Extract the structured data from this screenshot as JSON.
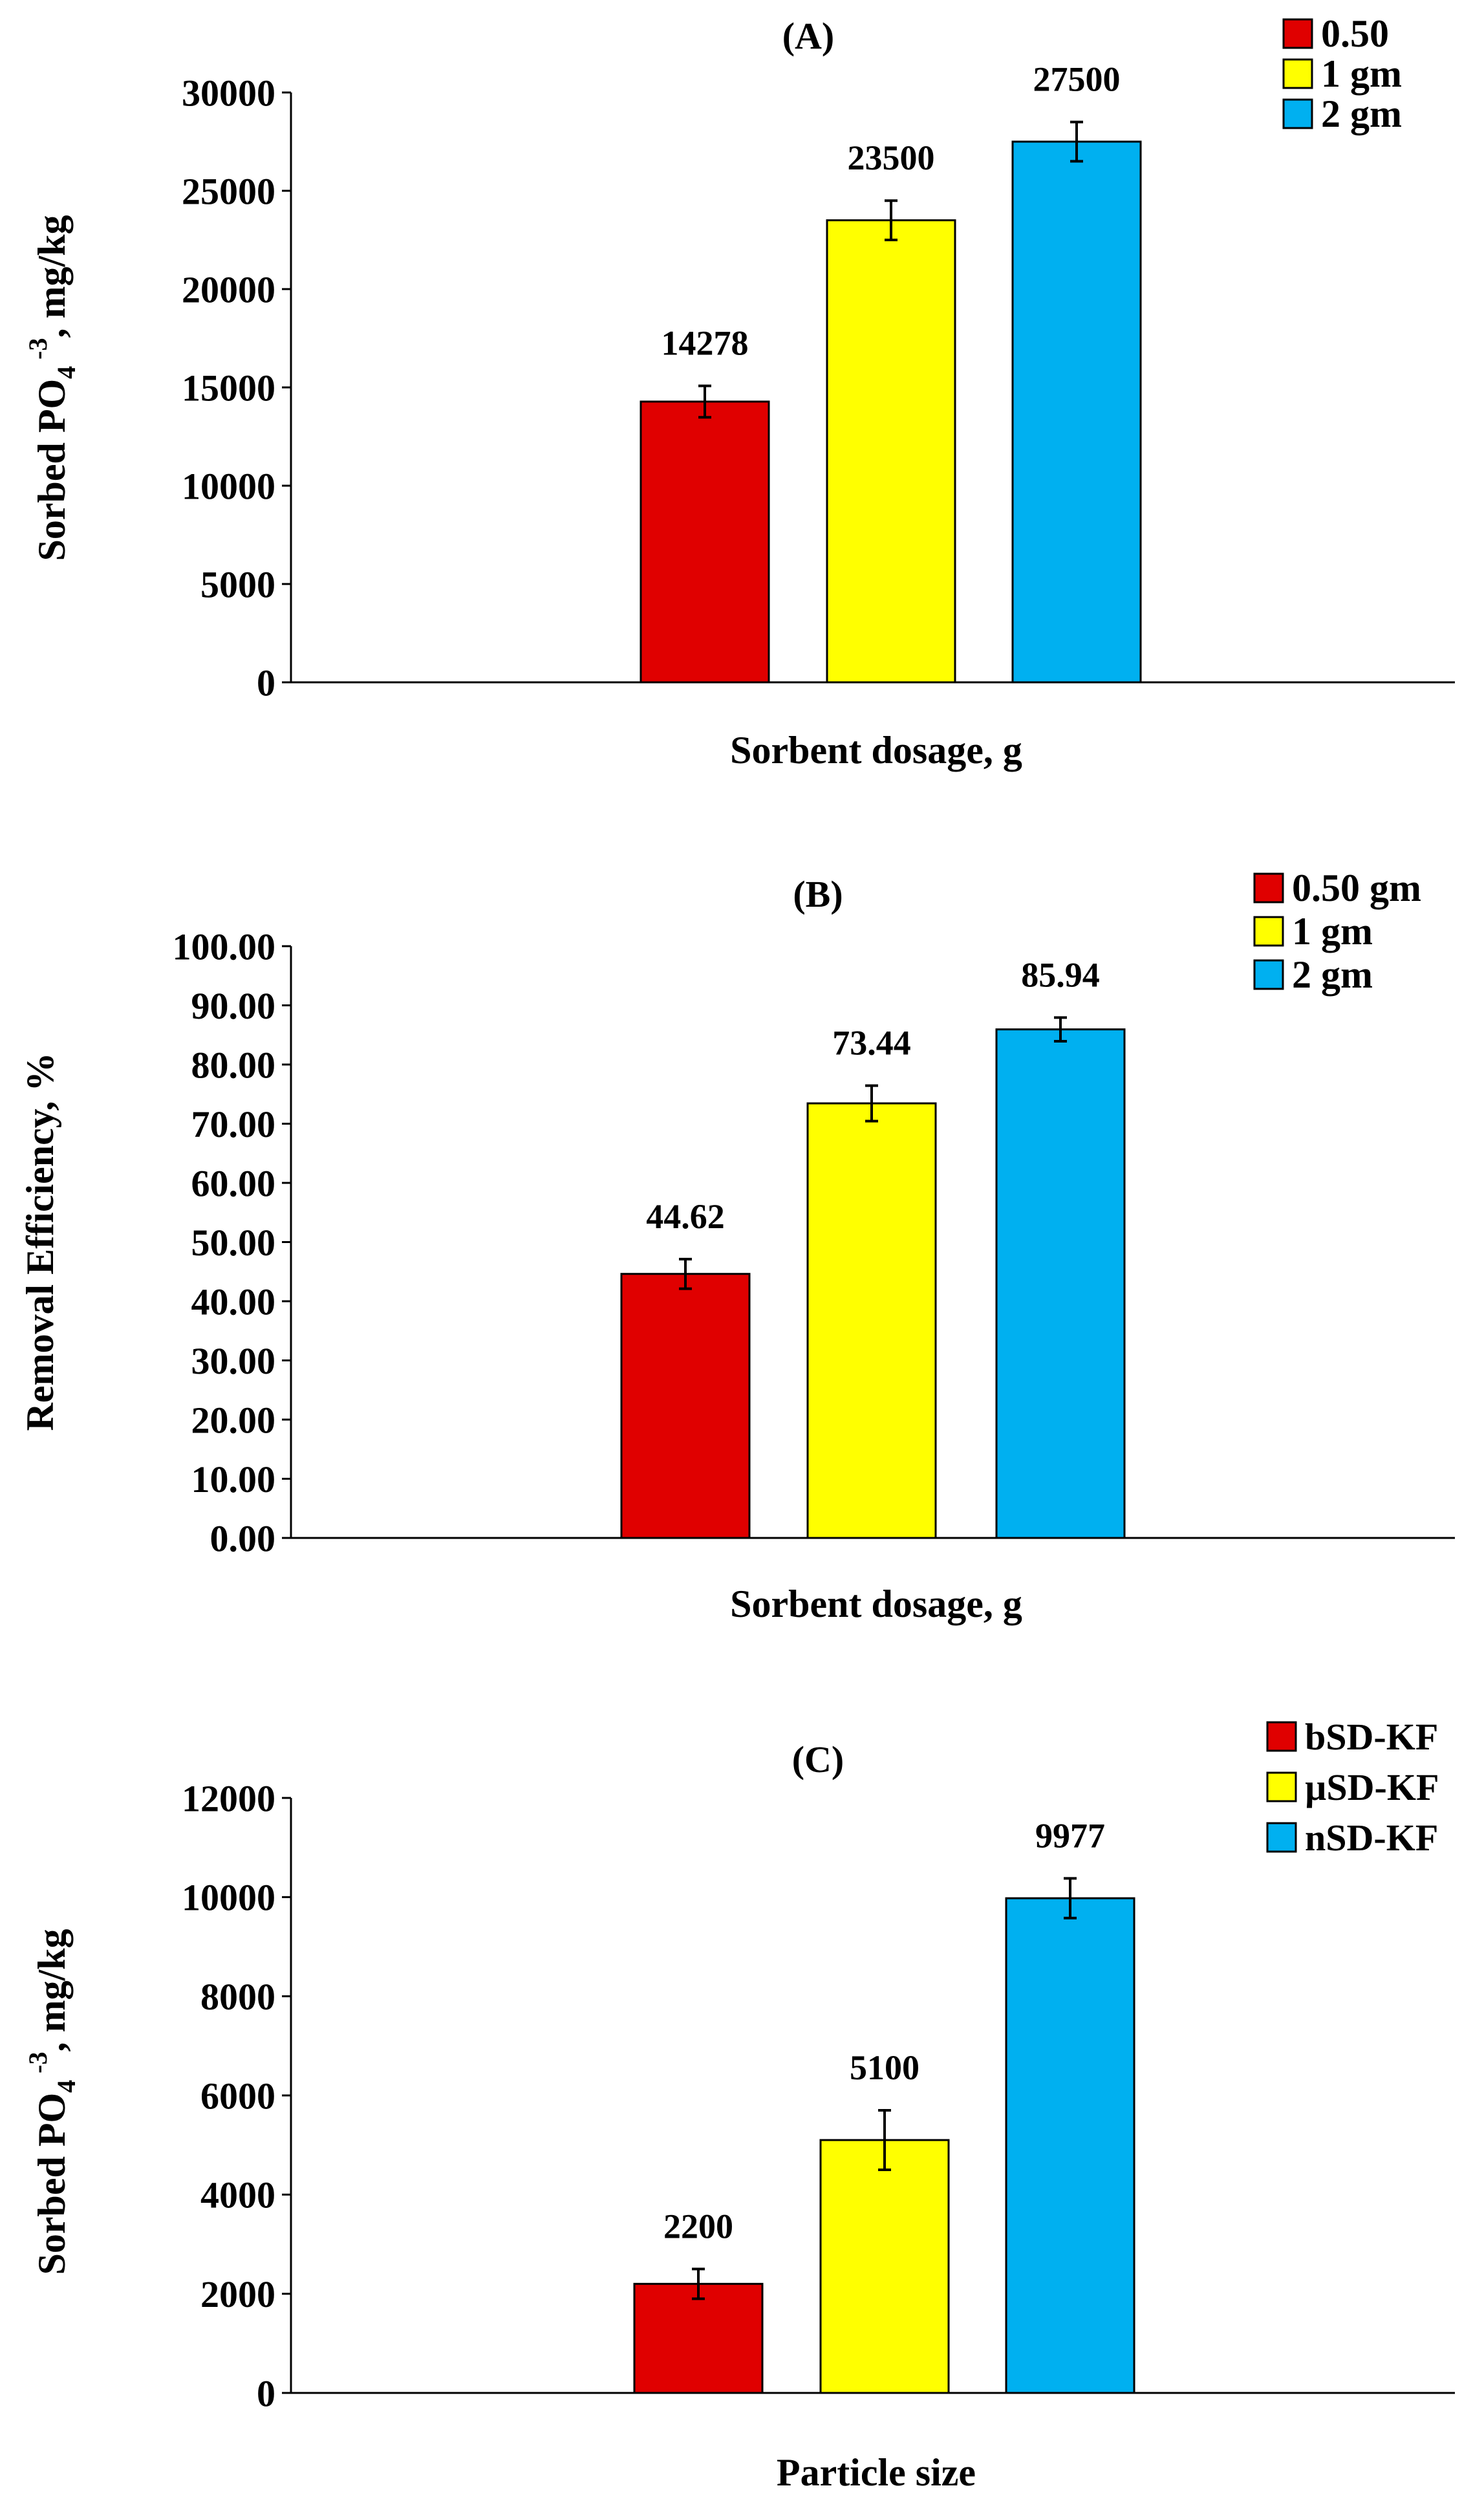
{
  "chart_data": [
    {
      "type": "bar",
      "title": "(A)",
      "xlabel": "Sorbent dosage, g",
      "ylabel_main": "Sorbed PO",
      "ylabel_sub": "4",
      "ylabel_sup": "-3",
      "ylabel_tail": ", mg/kg",
      "ylim": [
        0,
        30000
      ],
      "yticks": [
        "0",
        "5000",
        "10000",
        "15000",
        "20000",
        "25000",
        "30000"
      ],
      "series": [
        {
          "name": "0.50",
          "value": 14278,
          "label": "14278",
          "error": 800,
          "color": "#e00000"
        },
        {
          "name": "1 gm",
          "value": 23500,
          "label": "23500",
          "error": 1000,
          "color": "#ffff00"
        },
        {
          "name": "2 gm",
          "value": 27500,
          "label": "27500",
          "error": 1000,
          "color": "#00b0f0"
        }
      ]
    },
    {
      "type": "bar",
      "title": "(B)",
      "xlabel": "Sorbent dosage, g",
      "ylabel_main": "Removal Efficiency, %",
      "ylim": [
        0,
        100
      ],
      "yticks": [
        "0.00",
        "10.00",
        "20.00",
        "30.00",
        "40.00",
        "50.00",
        "60.00",
        "70.00",
        "80.00",
        "90.00",
        "100.00"
      ],
      "series": [
        {
          "name": "0.50 gm",
          "value": 44.62,
          "label": "44.62",
          "error": 2.5,
          "color": "#e00000"
        },
        {
          "name": "1 gm",
          "value": 73.44,
          "label": "73.44",
          "error": 3,
          "color": "#ffff00"
        },
        {
          "name": "2 gm",
          "value": 85.94,
          "label": "85.94",
          "error": 2,
          "color": "#00b0f0"
        }
      ]
    },
    {
      "type": "bar",
      "title": "(C)",
      "xlabel": "Particle size",
      "ylabel_main": "Sorbed PO",
      "ylabel_sub": "4",
      "ylabel_sup": "-3",
      "ylabel_tail": ", mg/kg",
      "ylim": [
        0,
        12000
      ],
      "yticks": [
        "0",
        "2000",
        "4000",
        "6000",
        "8000",
        "10000",
        "12000"
      ],
      "series": [
        {
          "name": "bSD-KF",
          "value": 2200,
          "label": "2200",
          "error": 300,
          "color": "#e00000"
        },
        {
          "name": "µSD-KF",
          "value": 5100,
          "label": "5100",
          "error": 600,
          "color": "#ffff00"
        },
        {
          "name": "nSD-KF",
          "value": 9977,
          "label": "9977",
          "error": 400,
          "color": "#00b0f0"
        }
      ]
    }
  ]
}
